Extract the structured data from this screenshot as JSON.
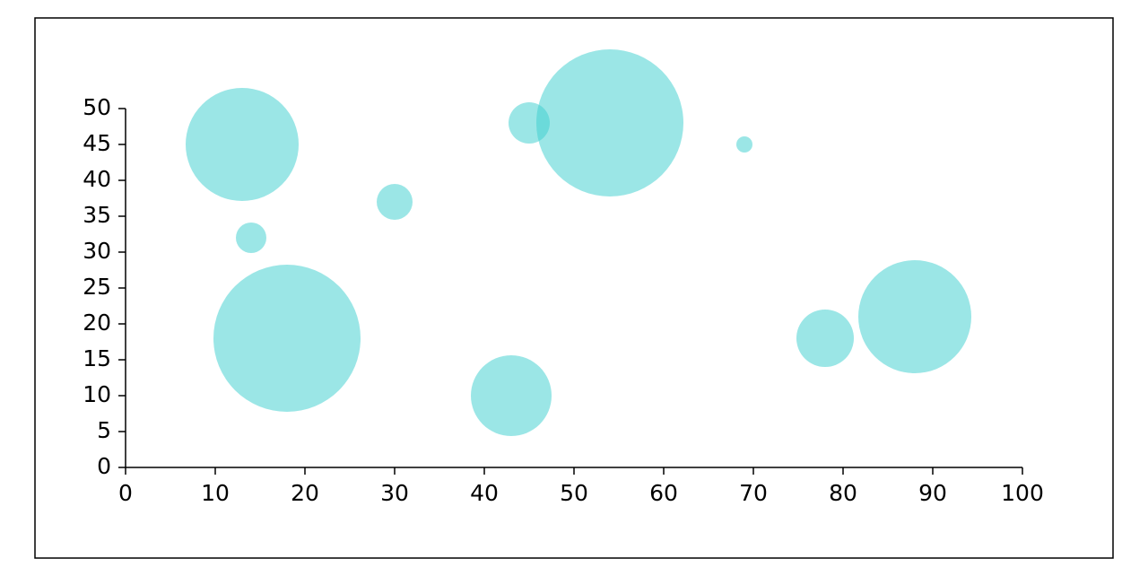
{
  "chart_data": {
    "type": "bubble",
    "x": [
      13,
      14,
      18,
      30,
      43,
      45,
      54,
      69,
      78,
      88
    ],
    "values": [
      45,
      32,
      18,
      37,
      10,
      48,
      48,
      45,
      18,
      21
    ],
    "sizes": [
      63,
      17,
      82,
      20,
      45,
      23,
      82,
      9,
      32,
      63
    ],
    "color": "#3fcfcf",
    "xlim": [
      0,
      100
    ],
    "xticks": [
      0,
      10,
      20,
      30,
      40,
      50,
      60,
      70,
      80,
      90,
      100
    ],
    "ylim": [
      0,
      50
    ],
    "yticks": [
      0,
      5,
      10,
      15,
      20,
      25,
      30,
      35,
      40,
      45,
      50
    ],
    "grid": false
  }
}
